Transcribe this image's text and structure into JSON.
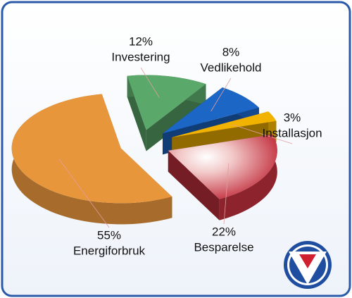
{
  "chart_data": {
    "type": "pie",
    "categories": [
      "Investering",
      "Vedlikehold",
      "Installasjon",
      "Besparelse",
      "Energiforbruk"
    ],
    "values": [
      12,
      8,
      3,
      22,
      55
    ],
    "value_labels": [
      "12%",
      "8%",
      "3%",
      "22%",
      "55%"
    ],
    "colors": [
      "#5aa86a",
      "#1c66c6",
      "#f2b200",
      "#c2303e",
      "#e8963c"
    ]
  }
}
